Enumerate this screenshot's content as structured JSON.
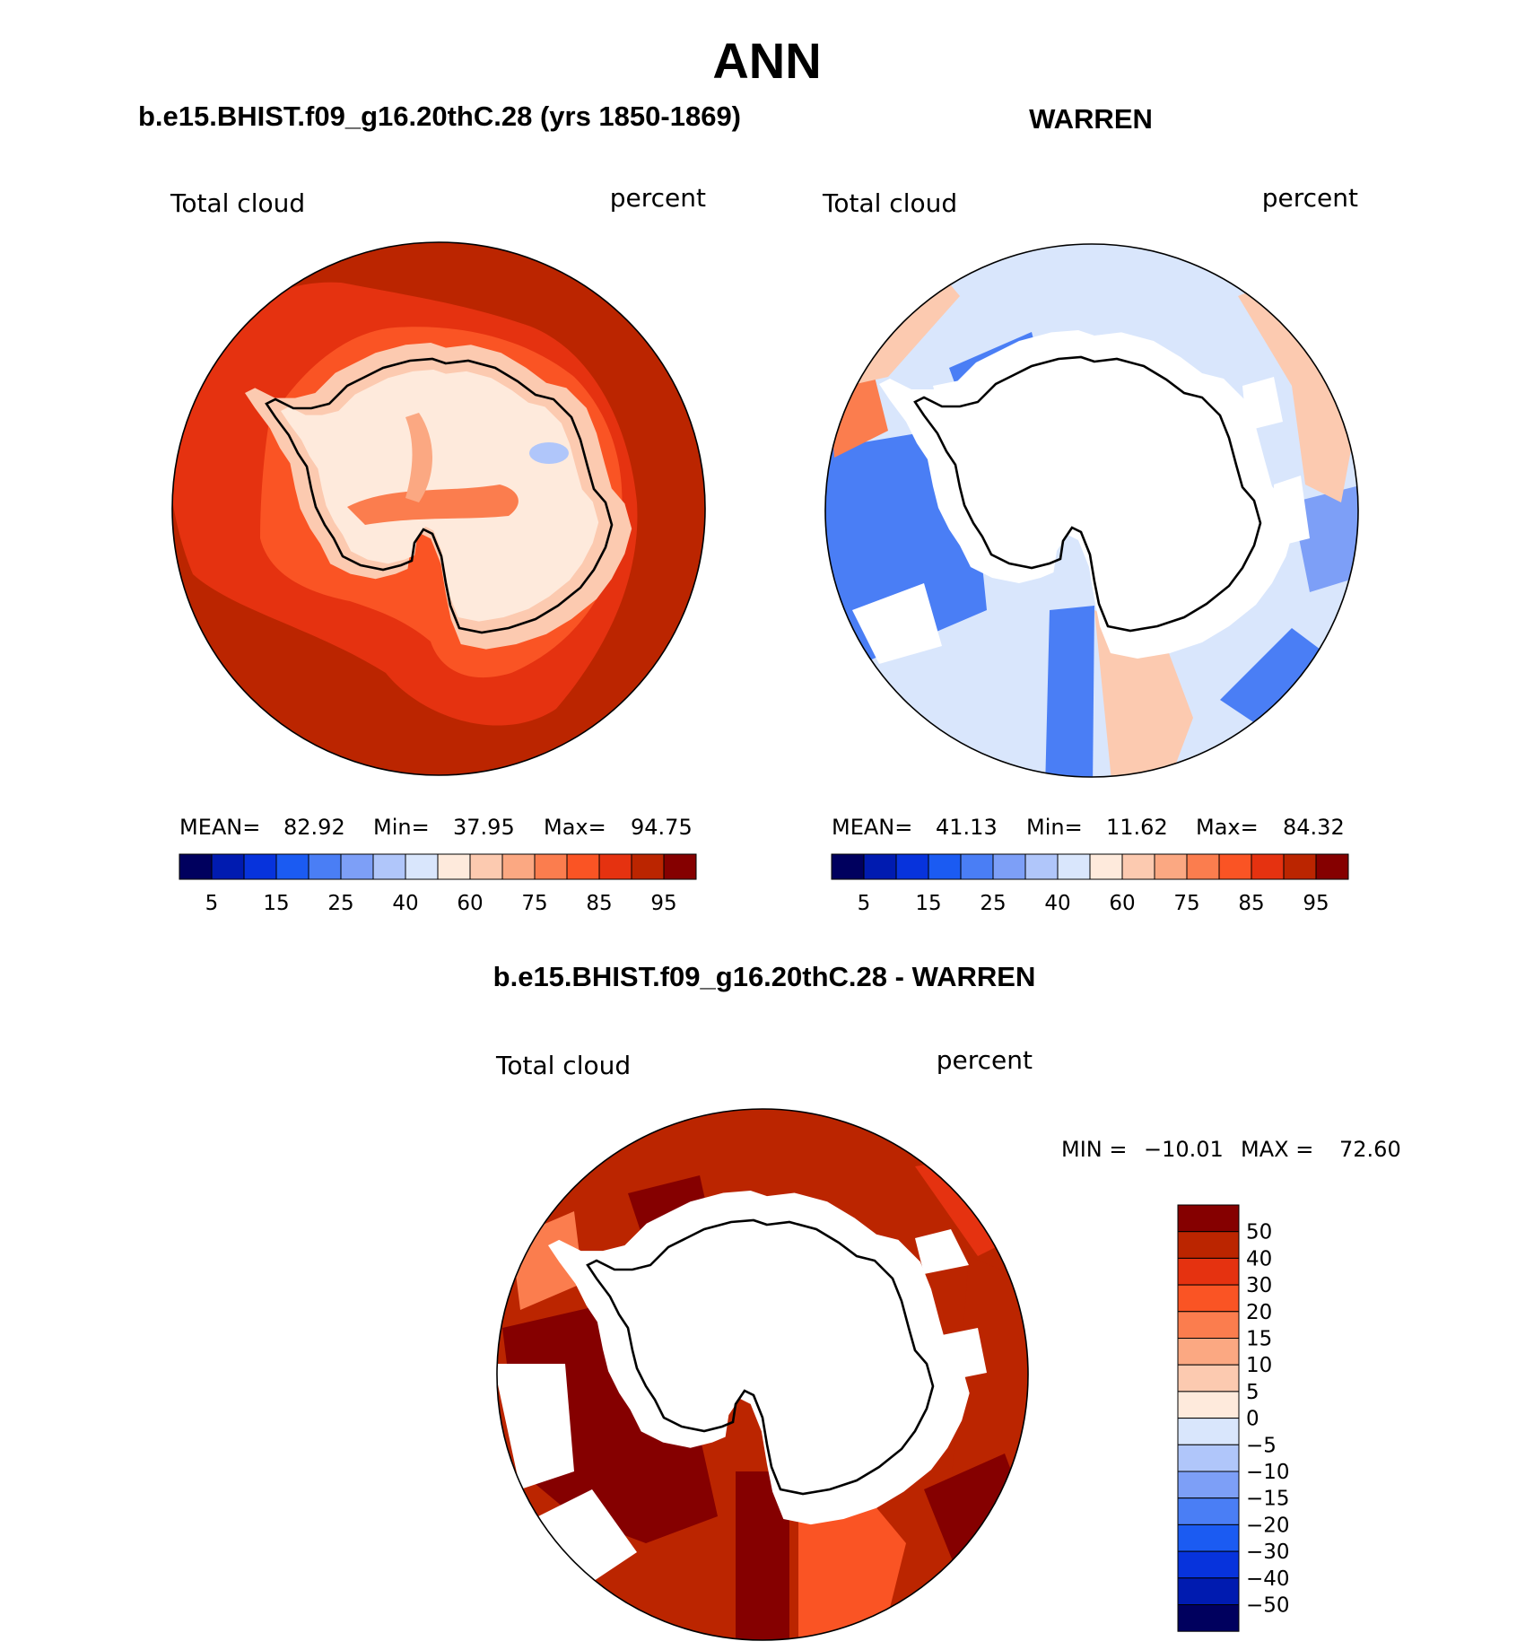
{
  "chart_data": {
    "type": "heatmap",
    "title": "ANN",
    "panels": [
      {
        "id": "model",
        "title": "b.e15.BHIST.f09_g16.20thC.28 (yrs 1850-1869)",
        "left_label": "Total cloud",
        "right_label": "percent",
        "stats": {
          "mean_label": "MEAN=",
          "mean": "82.92",
          "min_label": "Min=",
          "min": "37.95",
          "max_label": "Max=",
          "max": "94.75"
        },
        "colorbar_ticks": [
          "5",
          "15",
          "25",
          "40",
          "60",
          "75",
          "85",
          "95"
        ],
        "levels": [
          5,
          10,
          15,
          20,
          25,
          30,
          40,
          50,
          60,
          70,
          75,
          80,
          85,
          90,
          95
        ],
        "colors": [
          "#00005e",
          "#001bb0",
          "#0733dc",
          "#1b5bf2",
          "#4a7ef5",
          "#7d9ff7",
          "#b0c6fa",
          "#d9e6fc",
          "#feeadc",
          "#fccab0",
          "#fba882",
          "#fb7d4e",
          "#fa5424",
          "#e53210",
          "#bb2500",
          "#850000"
        ]
      },
      {
        "id": "obs",
        "title": "WARREN",
        "left_label": "Total cloud",
        "right_label": "percent",
        "stats": {
          "mean_label": "MEAN=",
          "mean": "41.13",
          "min_label": "Min=",
          "min": "11.62",
          "max_label": "Max=",
          "max": "84.32"
        },
        "colorbar_ticks": [
          "5",
          "15",
          "25",
          "40",
          "60",
          "75",
          "85",
          "95"
        ]
      },
      {
        "id": "diff",
        "title": "b.e15.BHIST.f09_g16.20thC.28 - WARREN",
        "left_label": "Total cloud",
        "right_label": "percent",
        "stats": {
          "min_label": "MIN =",
          "min": "−10.01",
          "max_label": "MAX =",
          "max": "72.60"
        },
        "colorbar_ticks": [
          "50",
          "40",
          "30",
          "20",
          "15",
          "10",
          "5",
          "0",
          "−5",
          "−10",
          "−15",
          "−20",
          "−30",
          "−40",
          "−50"
        ],
        "levels": [
          -50,
          -40,
          -30,
          -20,
          -15,
          -10,
          -5,
          0,
          5,
          10,
          15,
          20,
          30,
          40,
          50
        ]
      }
    ]
  },
  "colors": {
    "palette": [
      "#00005e",
      "#001bb0",
      "#0733dc",
      "#1b5bf2",
      "#4a7ef5",
      "#7d9ff7",
      "#b0c6fa",
      "#d9e6fc",
      "#feeadc",
      "#fccab0",
      "#fba882",
      "#fb7d4e",
      "#fa5424",
      "#e53210",
      "#bb2500",
      "#850000"
    ],
    "land_outline": "#000000"
  }
}
